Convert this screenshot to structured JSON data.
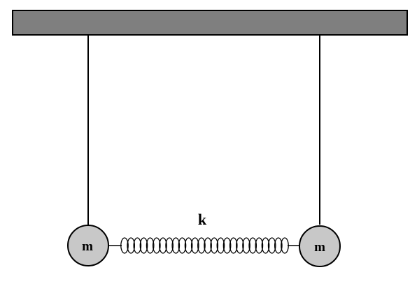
{
  "diagram": {
    "colors": {
      "ceiling_fill": "#7f7f7f",
      "mass_fill": "#c8c8c8",
      "stroke": "#000000",
      "background": "#ffffff"
    },
    "spring_label": "k",
    "masses": [
      {
        "id": "left",
        "label": "m"
      },
      {
        "id": "right",
        "label": "m"
      }
    ],
    "spring_coils": 26
  }
}
